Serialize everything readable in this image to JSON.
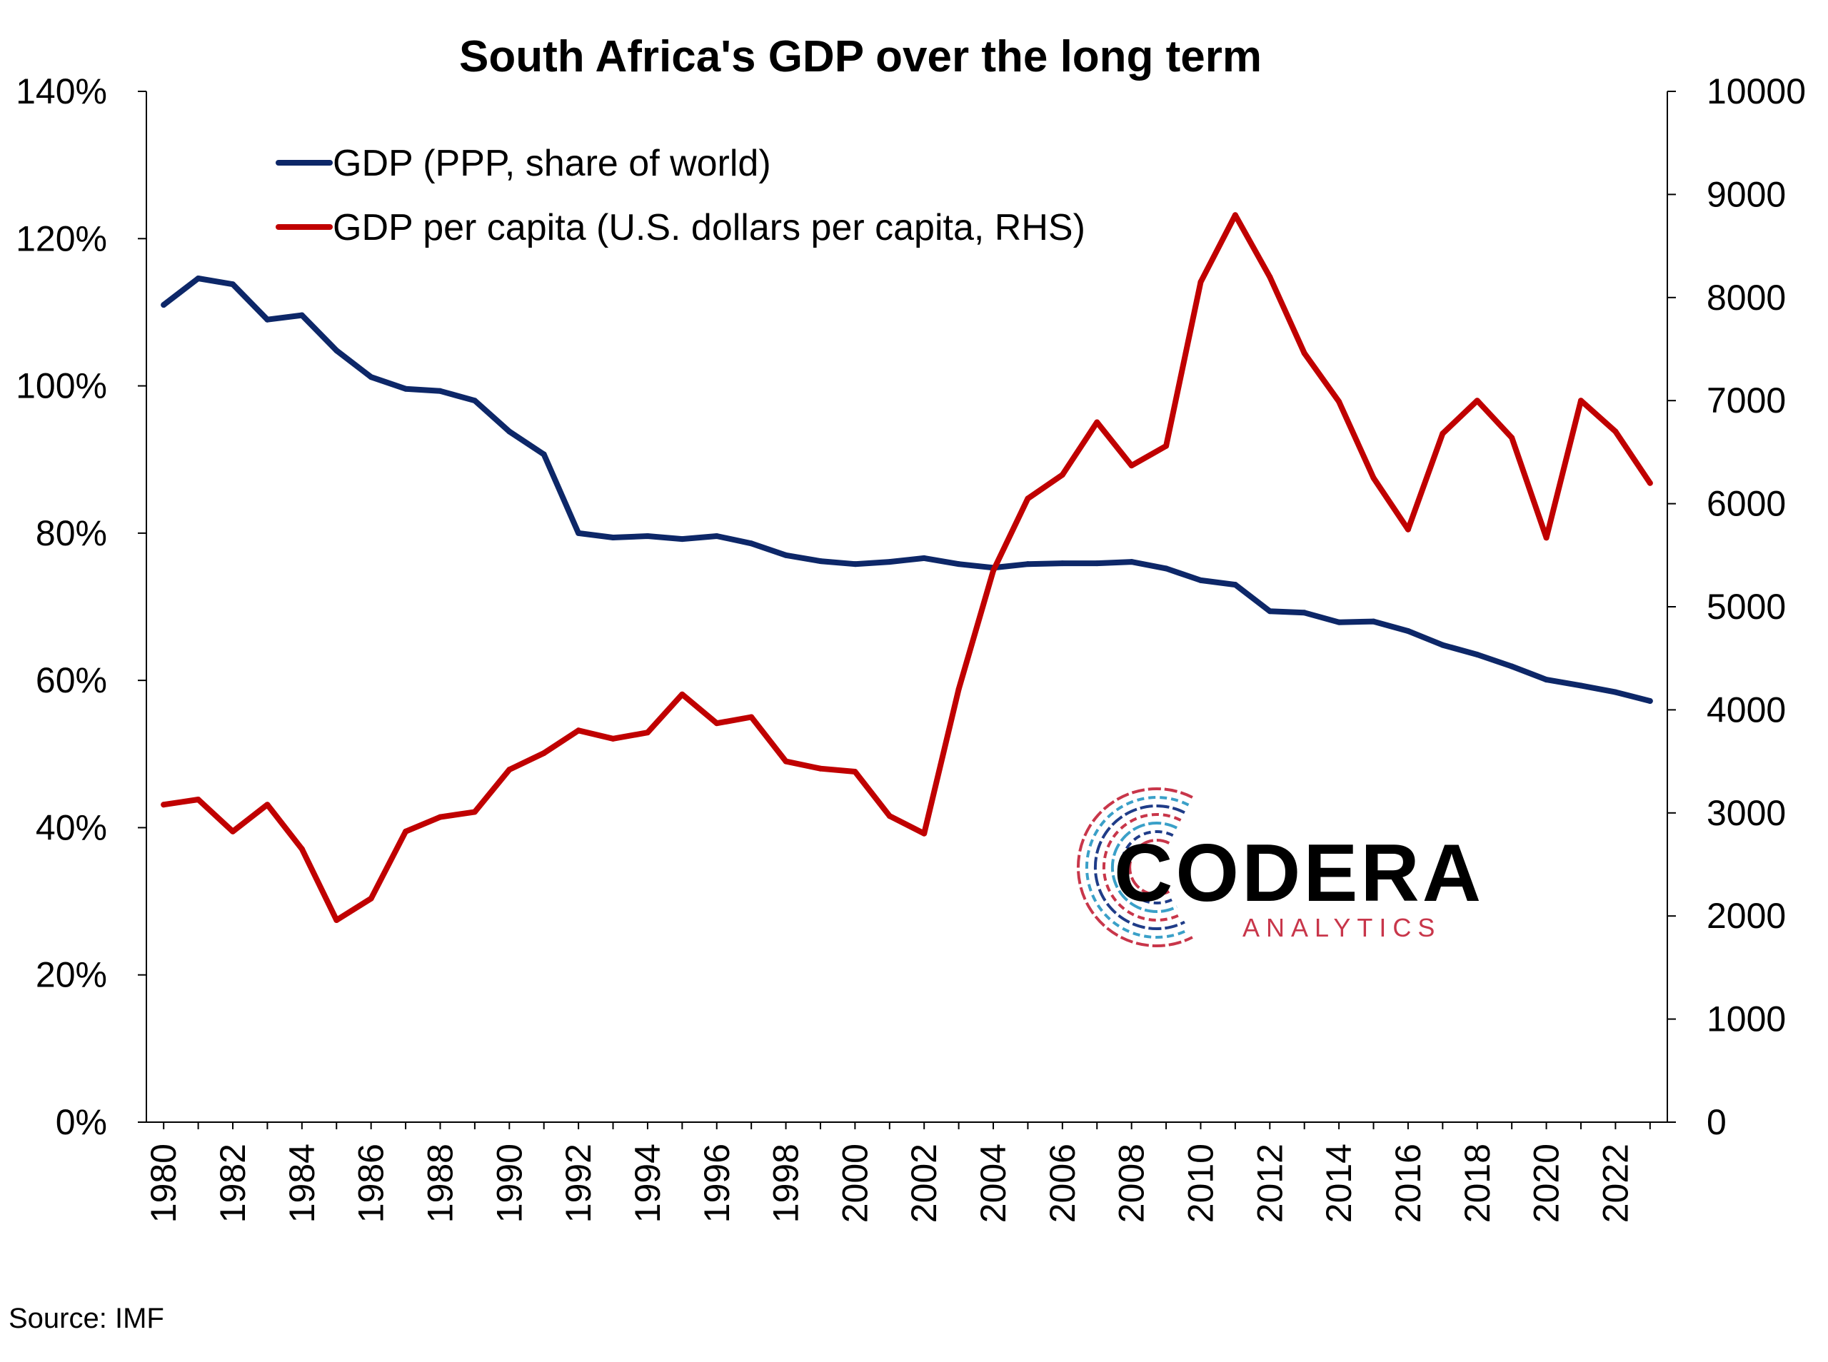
{
  "chart_data": {
    "type": "line",
    "title": "South Africa's GDP over the long term",
    "x": [
      1980,
      1981,
      1982,
      1983,
      1984,
      1985,
      1986,
      1987,
      1988,
      1989,
      1990,
      1991,
      1992,
      1993,
      1994,
      1995,
      1996,
      1997,
      1998,
      1999,
      2000,
      2001,
      2002,
      2003,
      2004,
      2005,
      2006,
      2007,
      2008,
      2009,
      2010,
      2011,
      2012,
      2013,
      2014,
      2015,
      2016,
      2017,
      2018,
      2019,
      2020,
      2021,
      2022,
      2023
    ],
    "x_tick_labels": [
      "1980",
      "1982",
      "1984",
      "1986",
      "1988",
      "1990",
      "1992",
      "1994",
      "1996",
      "1998",
      "2000",
      "2002",
      "2004",
      "2006",
      "2008",
      "2010",
      "2012",
      "2014",
      "2016",
      "2018",
      "2020",
      "2022"
    ],
    "y_left": {
      "ylim": [
        0,
        140
      ],
      "tick_labels": [
        "0%",
        "20%",
        "40%",
        "60%",
        "80%",
        "100%",
        "120%",
        "140%"
      ]
    },
    "y_right": {
      "ylim": [
        0,
        10000
      ],
      "tick_labels": [
        "0",
        "1000",
        "2000",
        "3000",
        "4000",
        "5000",
        "6000",
        "7000",
        "8000",
        "9000",
        "10000"
      ]
    },
    "series": [
      {
        "name": "GDP (PPP, share of world)",
        "axis": "left",
        "color": "#0d2768",
        "values": [
          111.0,
          114.6,
          113.8,
          109.0,
          109.6,
          104.8,
          101.2,
          99.6,
          99.3,
          98.0,
          93.8,
          90.7,
          80.0,
          79.4,
          79.6,
          79.2,
          79.6,
          78.6,
          77.0,
          76.2,
          75.8,
          76.1,
          76.6,
          75.8,
          75.3,
          75.8,
          75.9,
          75.9,
          76.1,
          75.2,
          73.6,
          73.0,
          69.4,
          69.2,
          67.9,
          68.0,
          66.7,
          64.8,
          63.5,
          61.9,
          60.1,
          59.3,
          58.4,
          57.2
        ]
      },
      {
        "name": "GDP per capita (U.S. dollars per capita, RHS)",
        "axis": "right",
        "color": "#c00000",
        "values": [
          3080,
          3130,
          2820,
          3080,
          2650,
          1960,
          2170,
          2820,
          2960,
          3010,
          3420,
          3580,
          3800,
          3720,
          3780,
          4150,
          3870,
          3930,
          3500,
          3430,
          3400,
          2970,
          2800,
          4200,
          5350,
          6050,
          6280,
          6790,
          6370,
          6560,
          8150,
          8800,
          8200,
          7460,
          6990,
          6250,
          5750,
          6680,
          7000,
          6640,
          5670,
          7000,
          6700,
          6200
        ]
      }
    ],
    "logo": {
      "name": "CODERA",
      "tagline": "ANALYTICS"
    },
    "source": "Source: IMF"
  }
}
